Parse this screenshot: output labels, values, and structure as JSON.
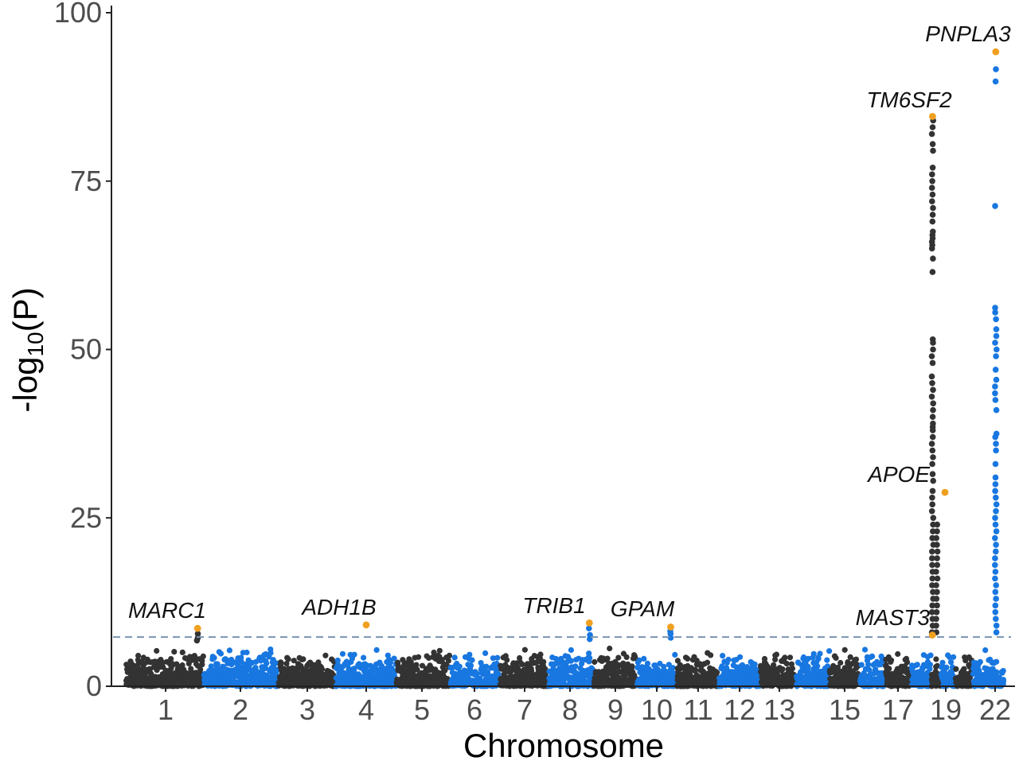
{
  "chart_data": {
    "type": "scatter",
    "subtype": "manhattan",
    "xlabel": "Chromosome",
    "ylabel_main": "-log",
    "ylabel_sub": "10",
    "ylabel_tail": "(P)",
    "ylim": [
      0,
      100
    ],
    "yticks": [
      0,
      25,
      50,
      75,
      100
    ],
    "significance_threshold": 7.3,
    "grid": false,
    "colors": {
      "odd": "#333333",
      "even": "#1877e0",
      "lead": "#f0a020",
      "threshold": "#7a93b0"
    },
    "chromosomes": [
      {
        "chr": 1,
        "label": "1",
        "baseline": 5.5
      },
      {
        "chr": 2,
        "label": "2",
        "baseline": 5.5
      },
      {
        "chr": 3,
        "label": "3",
        "baseline": 5.0
      },
      {
        "chr": 4,
        "label": "4",
        "baseline": 5.0
      },
      {
        "chr": 5,
        "label": "5",
        "baseline": 5.5
      },
      {
        "chr": 6,
        "label": "6",
        "baseline": 5.3
      },
      {
        "chr": 7,
        "label": "7",
        "baseline": 5.5
      },
      {
        "chr": 8,
        "label": "8",
        "baseline": 5.5
      },
      {
        "chr": 9,
        "label": "9",
        "baseline": 5.2
      },
      {
        "chr": 10,
        "label": "10",
        "baseline": 5.0
      },
      {
        "chr": 11,
        "label": "11",
        "baseline": 5.0
      },
      {
        "chr": 12,
        "label": "12",
        "baseline": 5.0
      },
      {
        "chr": 13,
        "label": "13",
        "baseline": 5.0
      },
      {
        "chr": 14,
        "label": "",
        "baseline": 5.5
      },
      {
        "chr": 15,
        "label": "15",
        "baseline": 5.0
      },
      {
        "chr": 16,
        "label": "",
        "baseline": 5.0
      },
      {
        "chr": 17,
        "label": "17",
        "baseline": 5.0
      },
      {
        "chr": 18,
        "label": "",
        "baseline": 5.0
      },
      {
        "chr": 19,
        "label": "19",
        "baseline": 5.0
      },
      {
        "chr": 20,
        "label": "",
        "baseline": 5.0
      },
      {
        "chr": 21,
        "label": "",
        "baseline": 5.0
      },
      {
        "chr": 22,
        "label": "22",
        "baseline": 5.0
      }
    ],
    "lead_variants": [
      {
        "gene": "MARC1",
        "chr": 1,
        "pos": 0.92,
        "y": 8.6
      },
      {
        "gene": "ADH1B",
        "chr": 4,
        "pos": 0.5,
        "y": 9.1
      },
      {
        "gene": "TRIB1",
        "chr": 8,
        "pos": 0.9,
        "y": 9.4
      },
      {
        "gene": "GPAM",
        "chr": 10,
        "pos": 0.85,
        "y": 8.8
      },
      {
        "gene": "MAST3",
        "chr": 19,
        "pos": 0.1,
        "y": 7.6
      },
      {
        "gene": "APOE",
        "chr": 19,
        "pos": 0.55,
        "y": 28.8
      },
      {
        "gene": "TM6SF2",
        "chr": 19,
        "pos": 0.12,
        "y": 84.6
      },
      {
        "gene": "PNPLA3",
        "chr": 22,
        "pos": 0.72,
        "y": 94.2
      }
    ],
    "peak_points": [
      {
        "chr": 19,
        "pos": 0.12,
        "y": [
          84.0,
          83.0,
          82.0,
          80.5,
          79.5,
          77.0,
          76.0,
          75.0,
          74.0,
          73.0,
          72.0,
          71.0,
          70.0,
          69.0,
          67.5,
          67.0,
          66.5,
          66.0,
          65.5,
          65.0,
          63.5,
          61.5,
          51.5,
          51.0,
          50.0,
          49.0,
          48.0,
          46.0,
          45.0,
          44.0,
          43.0,
          42.0,
          41.0,
          40.0,
          39.0,
          38.5,
          38.0,
          37.0,
          36.0,
          35.0,
          34.0,
          33.0,
          31.5,
          30.5,
          29.0,
          28.0,
          27.0,
          26.0,
          25.0,
          24.0,
          23.0,
          22.0,
          21.0,
          20.0,
          19.0,
          18.0,
          17.0,
          16.0,
          15.0,
          14.0,
          13.0,
          12.0,
          11.0,
          10.0,
          9.0,
          8.0
        ]
      },
      {
        "chr": 19,
        "pos": 0.55,
        "y": [
          24.0,
          23.0,
          22.0,
          21.0,
          20.0,
          19.0,
          18.0,
          17.0,
          16.0,
          15.0,
          14.0,
          13.0,
          12.0,
          11.0,
          10.0,
          9.0,
          8.0
        ]
      },
      {
        "chr": 22,
        "pos": 0.72,
        "y": [
          91.6,
          89.8,
          71.3,
          56.2,
          55.5,
          54.5,
          53.0,
          52.0,
          51.0,
          50.0,
          49.0,
          47.0,
          45.5,
          44.5,
          43.5,
          42.5,
          41.0,
          37.5,
          37.0,
          36.0,
          35.0,
          33.0,
          31.0,
          30.0,
          29.0,
          28.0,
          27.0,
          26.0,
          25.0,
          24.0,
          23.0,
          22.0,
          21.0,
          20.0,
          19.0,
          18.0,
          17.0,
          16.0,
          15.0,
          14.0,
          13.0,
          12.0,
          11.0,
          10.0,
          9.0,
          8.0
        ]
      },
      {
        "chr": 8,
        "pos": 0.9,
        "y": [
          8.6,
          7.6,
          7.0
        ]
      },
      {
        "chr": 10,
        "pos": 0.85,
        "y": [
          8.2,
          7.8,
          7.2
        ]
      },
      {
        "chr": 1,
        "pos": 0.92,
        "y": [
          7.8,
          7.2,
          6.8
        ]
      }
    ]
  }
}
